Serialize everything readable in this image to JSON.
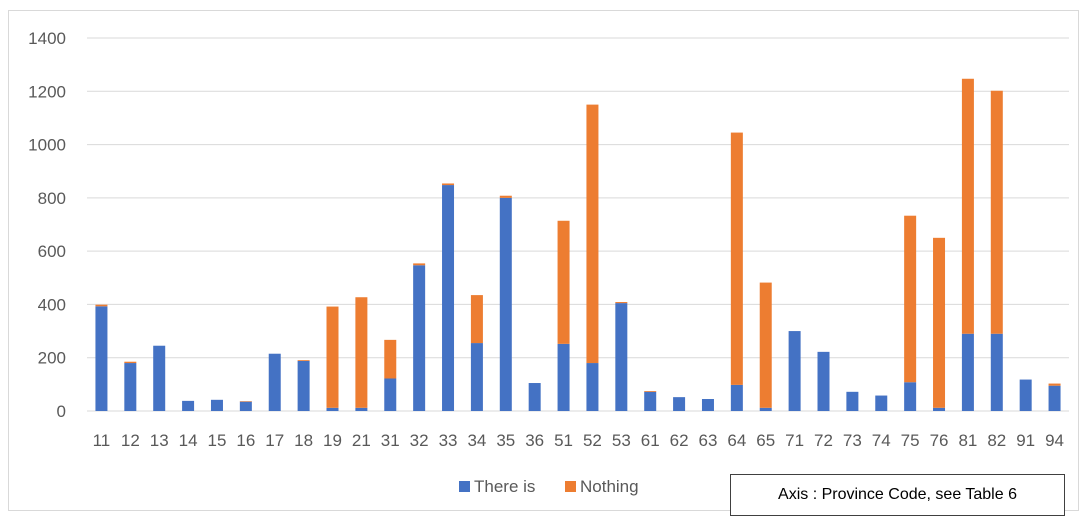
{
  "chart_data": {
    "type": "bar",
    "stacked": true,
    "categories": [
      "11",
      "12",
      "13",
      "14",
      "15",
      "16",
      "17",
      "18",
      "19",
      "21",
      "31",
      "32",
      "33",
      "34",
      "35",
      "36",
      "51",
      "52",
      "53",
      "61",
      "62",
      "63",
      "64",
      "65",
      "71",
      "72",
      "73",
      "74",
      "75",
      "76",
      "81",
      "82",
      "91",
      "94"
    ],
    "series": [
      {
        "name": "There is",
        "color": "#4472c4",
        "values": [
          393,
          180,
          245,
          38,
          42,
          35,
          215,
          188,
          12,
          12,
          122,
          547,
          848,
          255,
          800,
          105,
          252,
          180,
          405,
          72,
          52,
          45,
          98,
          12,
          300,
          222,
          72,
          58,
          108,
          12,
          290,
          290,
          118,
          95
        ]
      },
      {
        "name": "Nothing",
        "color": "#ed7d31",
        "values": [
          6,
          5,
          0,
          0,
          0,
          2,
          0,
          3,
          380,
          415,
          145,
          7,
          6,
          180,
          8,
          0,
          462,
          970,
          4,
          3,
          0,
          0,
          947,
          470,
          0,
          0,
          0,
          0,
          625,
          638,
          957,
          912,
          0,
          8
        ]
      }
    ],
    "ylim": [
      0,
      1400
    ],
    "yticks": [
      0,
      200,
      400,
      600,
      800,
      1000,
      1200,
      1400
    ],
    "grid": true,
    "legend": "bottom-center",
    "annotation": "Axis : Province Code, see Table  6"
  }
}
